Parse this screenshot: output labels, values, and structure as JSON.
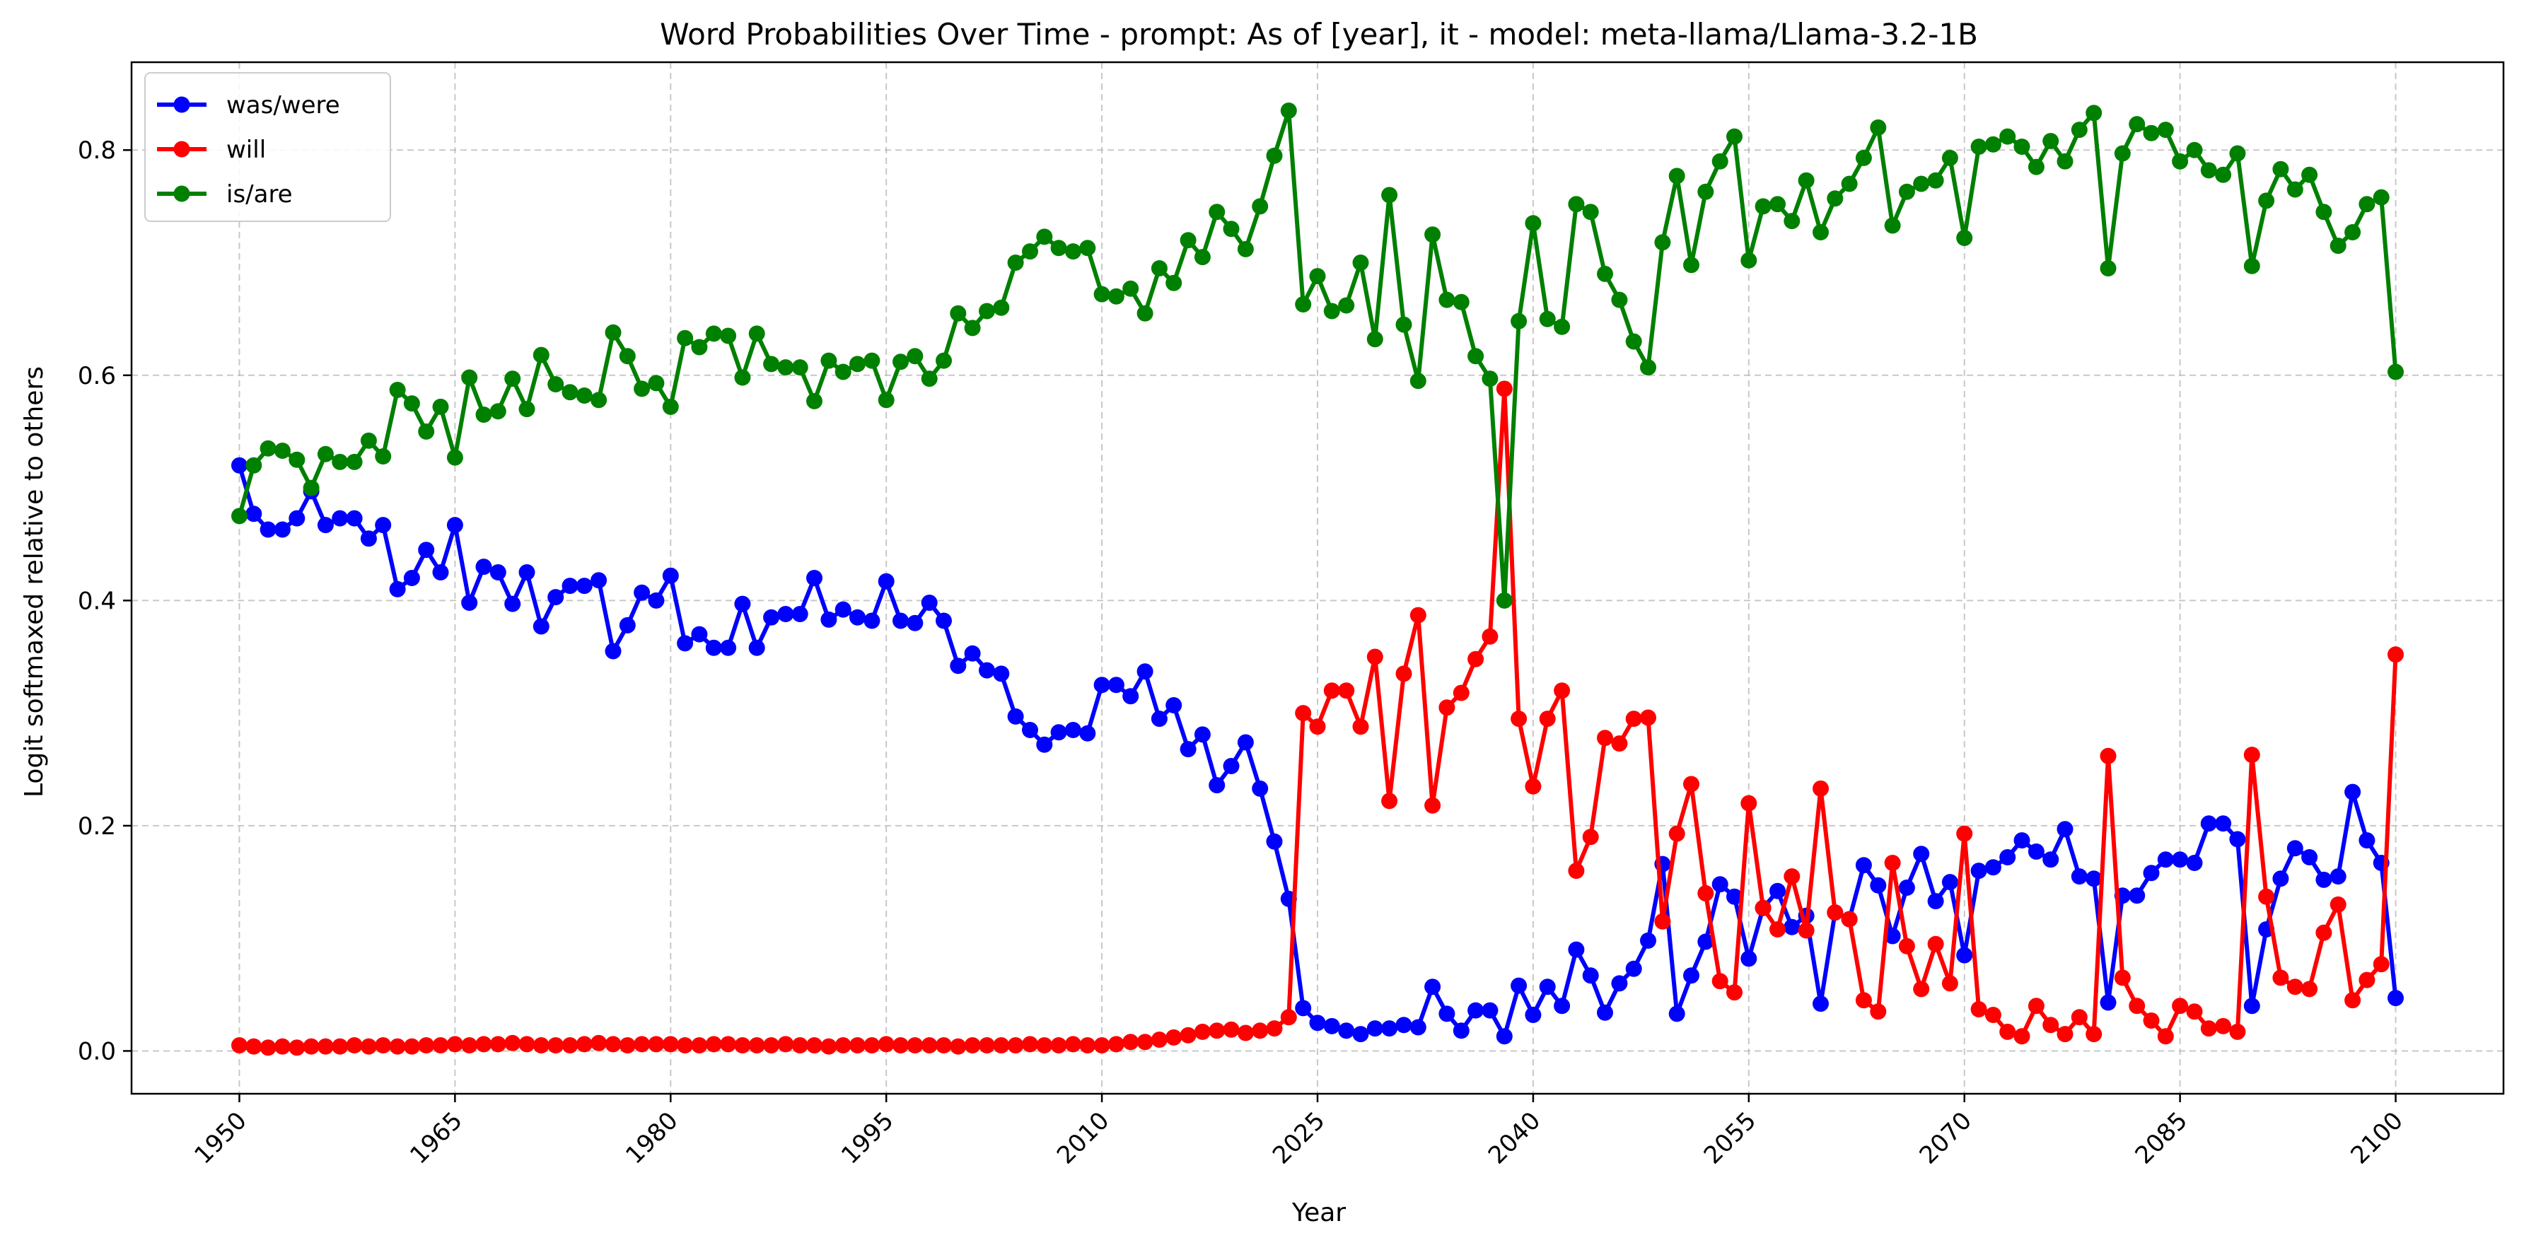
{
  "chart_data": {
    "type": "line",
    "title": "Word Probabilities Over Time - prompt: As of [year], it - model: meta-llama/Llama-3.2-1B",
    "xlabel": "Year",
    "ylabel": "Logit softmaxed relative to others",
    "xlim": [
      1942.5,
      2107.5
    ],
    "ylim": [
      -0.038,
      0.878
    ],
    "xticks": [
      1950,
      1965,
      1980,
      1995,
      2010,
      2025,
      2040,
      2055,
      2070,
      2085,
      2100
    ],
    "xtick_labels": [
      "1950",
      "1965",
      "1980",
      "1995",
      "2010",
      "2025",
      "2040",
      "2055",
      "2070",
      "2085",
      "2100"
    ],
    "yticks": [
      0.0,
      0.2,
      0.4,
      0.6,
      0.8
    ],
    "ytick_labels": [
      "0.0",
      "0.2",
      "0.4",
      "0.6",
      "0.8"
    ],
    "grid": true,
    "legend_position": "upper-left",
    "x_start": 1950,
    "x_step": 1,
    "series": [
      {
        "name": "was/were",
        "color": "#0000ff",
        "values": [
          0.52,
          0.477,
          0.463,
          0.463,
          0.473,
          0.497,
          0.467,
          0.473,
          0.473,
          0.455,
          0.467,
          0.41,
          0.42,
          0.445,
          0.425,
          0.467,
          0.398,
          0.43,
          0.425,
          0.397,
          0.425,
          0.377,
          0.403,
          0.413,
          0.413,
          0.418,
          0.355,
          0.378,
          0.407,
          0.4,
          0.422,
          0.362,
          0.37,
          0.358,
          0.358,
          0.397,
          0.358,
          0.385,
          0.388,
          0.388,
          0.42,
          0.383,
          0.392,
          0.385,
          0.382,
          0.417,
          0.382,
          0.38,
          0.398,
          0.382,
          0.342,
          0.353,
          0.338,
          0.335,
          0.297,
          0.285,
          0.272,
          0.283,
          0.285,
          0.282,
          0.325,
          0.325,
          0.315,
          0.337,
          0.295,
          0.307,
          0.268,
          0.281,
          0.236,
          0.253,
          0.274,
          0.233,
          0.186,
          0.135,
          0.038,
          0.025,
          0.022,
          0.018,
          0.015,
          0.02,
          0.02,
          0.023,
          0.021,
          0.057,
          0.033,
          0.018,
          0.036,
          0.036,
          0.013,
          0.058,
          0.032,
          0.057,
          0.04,
          0.09,
          0.067,
          0.034,
          0.06,
          0.073,
          0.098,
          0.166,
          0.033,
          0.067,
          0.097,
          0.148,
          0.137,
          0.082,
          0.127,
          0.142,
          0.11,
          0.12,
          0.042,
          0.123,
          0.117,
          0.165,
          0.147,
          0.102,
          0.145,
          0.175,
          0.133,
          0.15,
          0.085,
          0.16,
          0.163,
          0.172,
          0.187,
          0.177,
          0.17,
          0.197,
          0.155,
          0.153,
          0.043,
          0.138,
          0.138,
          0.158,
          0.17,
          0.17,
          0.167,
          0.202,
          0.202,
          0.188,
          0.04,
          0.108,
          0.153,
          0.18,
          0.172,
          0.152,
          0.155,
          0.23,
          0.187,
          0.167,
          0.047
        ]
      },
      {
        "name": "will",
        "color": "#ff0000",
        "values": [
          0.005,
          0.004,
          0.003,
          0.004,
          0.003,
          0.004,
          0.004,
          0.004,
          0.005,
          0.004,
          0.005,
          0.004,
          0.004,
          0.005,
          0.005,
          0.006,
          0.005,
          0.006,
          0.006,
          0.007,
          0.006,
          0.005,
          0.005,
          0.005,
          0.006,
          0.007,
          0.006,
          0.005,
          0.006,
          0.006,
          0.006,
          0.005,
          0.005,
          0.006,
          0.006,
          0.005,
          0.005,
          0.005,
          0.006,
          0.005,
          0.005,
          0.004,
          0.005,
          0.005,
          0.005,
          0.006,
          0.005,
          0.005,
          0.005,
          0.005,
          0.004,
          0.005,
          0.005,
          0.005,
          0.005,
          0.006,
          0.005,
          0.005,
          0.006,
          0.005,
          0.005,
          0.006,
          0.008,
          0.008,
          0.01,
          0.012,
          0.014,
          0.017,
          0.018,
          0.019,
          0.016,
          0.018,
          0.02,
          0.03,
          0.3,
          0.288,
          0.32,
          0.32,
          0.288,
          0.35,
          0.222,
          0.335,
          0.387,
          0.218,
          0.305,
          0.318,
          0.348,
          0.368,
          0.588,
          0.295,
          0.235,
          0.295,
          0.32,
          0.16,
          0.19,
          0.278,
          0.273,
          0.295,
          0.296,
          0.115,
          0.193,
          0.237,
          0.14,
          0.062,
          0.052,
          0.22,
          0.127,
          0.108,
          0.155,
          0.107,
          0.233,
          0.123,
          0.117,
          0.045,
          0.035,
          0.167,
          0.093,
          0.055,
          0.095,
          0.06,
          0.193,
          0.037,
          0.032,
          0.017,
          0.013,
          0.04,
          0.023,
          0.015,
          0.03,
          0.015,
          0.262,
          0.065,
          0.04,
          0.027,
          0.013,
          0.04,
          0.035,
          0.02,
          0.022,
          0.017,
          0.263,
          0.137,
          0.065,
          0.057,
          0.055,
          0.105,
          0.13,
          0.045,
          0.063,
          0.077,
          0.352
        ]
      },
      {
        "name": "is/are",
        "color": "#008000",
        "values": [
          0.475,
          0.52,
          0.535,
          0.533,
          0.525,
          0.5,
          0.53,
          0.523,
          0.523,
          0.542,
          0.528,
          0.587,
          0.575,
          0.55,
          0.572,
          0.527,
          0.598,
          0.565,
          0.568,
          0.597,
          0.57,
          0.618,
          0.592,
          0.585,
          0.582,
          0.578,
          0.638,
          0.617,
          0.588,
          0.593,
          0.572,
          0.633,
          0.625,
          0.637,
          0.635,
          0.598,
          0.637,
          0.61,
          0.607,
          0.607,
          0.577,
          0.613,
          0.603,
          0.61,
          0.613,
          0.578,
          0.612,
          0.617,
          0.597,
          0.613,
          0.655,
          0.642,
          0.657,
          0.66,
          0.7,
          0.71,
          0.723,
          0.713,
          0.71,
          0.713,
          0.672,
          0.67,
          0.677,
          0.655,
          0.695,
          0.682,
          0.72,
          0.705,
          0.745,
          0.73,
          0.712,
          0.75,
          0.795,
          0.835,
          0.663,
          0.688,
          0.657,
          0.662,
          0.7,
          0.632,
          0.76,
          0.645,
          0.595,
          0.725,
          0.667,
          0.665,
          0.617,
          0.597,
          0.4,
          0.648,
          0.735,
          0.65,
          0.643,
          0.752,
          0.745,
          0.69,
          0.667,
          0.63,
          0.607,
          0.718,
          0.777,
          0.698,
          0.763,
          0.79,
          0.812,
          0.702,
          0.75,
          0.752,
          0.737,
          0.773,
          0.727,
          0.757,
          0.77,
          0.793,
          0.82,
          0.733,
          0.763,
          0.77,
          0.773,
          0.793,
          0.722,
          0.803,
          0.805,
          0.812,
          0.803,
          0.785,
          0.808,
          0.79,
          0.818,
          0.833,
          0.695,
          0.797,
          0.823,
          0.815,
          0.818,
          0.79,
          0.8,
          0.782,
          0.778,
          0.797,
          0.697,
          0.755,
          0.783,
          0.765,
          0.778,
          0.745,
          0.715,
          0.727,
          0.752,
          0.758,
          0.603
        ]
      }
    ]
  }
}
